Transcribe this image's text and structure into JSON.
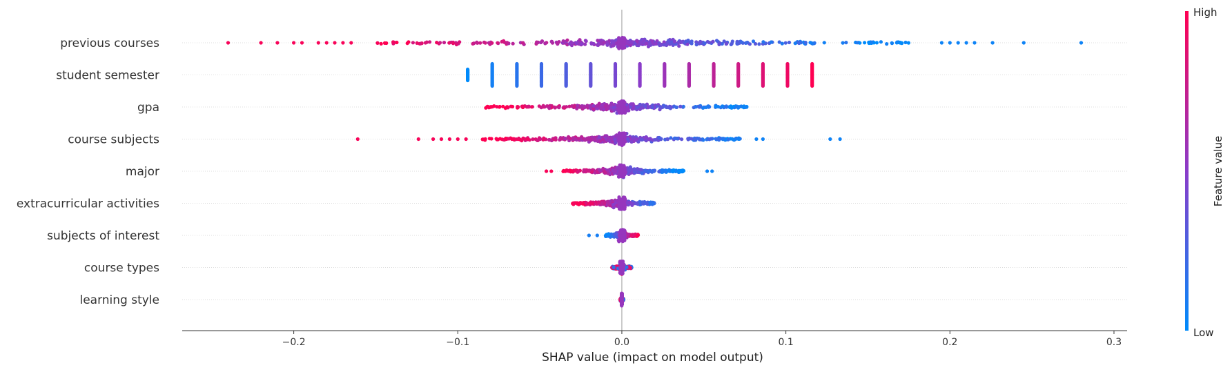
{
  "chart_data": {
    "type": "scatter",
    "subtype": "shap-beeswarm",
    "title": "",
    "xlabel": "SHAP value (impact on model output)",
    "xlim": [
      -0.268,
      0.308
    ],
    "xticks": [
      -0.2,
      -0.1,
      0.0,
      0.1,
      0.2,
      0.3
    ],
    "xtick_labels": [
      "−0.2",
      "−0.1",
      "0.0",
      "0.1",
      "0.2",
      "0.3"
    ],
    "features": [
      {
        "name": "previous courses",
        "color_trend": "low-positive",
        "dense_range": [
          -0.15,
          0.175
        ],
        "outliers": [
          -0.24,
          -0.22,
          -0.21,
          -0.2,
          -0.195,
          -0.185,
          -0.18,
          -0.175,
          -0.17,
          -0.165,
          0.195,
          0.2,
          0.205,
          0.21,
          0.215,
          0.226,
          0.245,
          0.28
        ]
      },
      {
        "name": "student semester",
        "color_trend": "discrete",
        "stripes": [
          -0.094,
          -0.079,
          -0.064,
          -0.049,
          -0.034,
          -0.019,
          -0.004,
          0.011,
          0.026,
          0.041,
          0.056,
          0.071,
          0.086,
          0.101,
          0.116
        ]
      },
      {
        "name": "gpa",
        "color_trend": "low-positive",
        "dense_range": [
          -0.083,
          0.077
        ],
        "outliers": []
      },
      {
        "name": "course subjects",
        "color_trend": "low-positive",
        "dense_range": [
          -0.085,
          0.073
        ],
        "outliers": [
          -0.161,
          -0.124,
          -0.115,
          -0.11,
          -0.105,
          -0.1,
          -0.095,
          0.082,
          0.086,
          0.127,
          0.133
        ]
      },
      {
        "name": "major",
        "color_trend": "low-positive",
        "dense_range": [
          -0.036,
          0.038
        ],
        "outliers": [
          -0.046,
          -0.043,
          0.052,
          0.055
        ]
      },
      {
        "name": "extracurricular activities",
        "color_trend": "low-positive",
        "dense_range": [
          -0.03,
          0.02
        ],
        "outliers": []
      },
      {
        "name": "subjects of interest",
        "color_trend": "high-positive",
        "dense_range": [
          -0.01,
          0.01
        ],
        "outliers": [
          -0.02,
          -0.015
        ]
      },
      {
        "name": "course types",
        "color_trend": "mixed",
        "dense_range": [
          -0.006,
          0.006
        ],
        "outliers": []
      },
      {
        "name": "learning style",
        "color_trend": "mixed",
        "dense_range": [
          -0.001,
          0.001
        ],
        "outliers": []
      }
    ],
    "colorbar": {
      "label": "Feature value",
      "high_label": "High",
      "low_label": "Low",
      "high_color": "#ff0052",
      "low_color": "#008bfb"
    },
    "grid": false,
    "legend": "colorbar-right"
  }
}
